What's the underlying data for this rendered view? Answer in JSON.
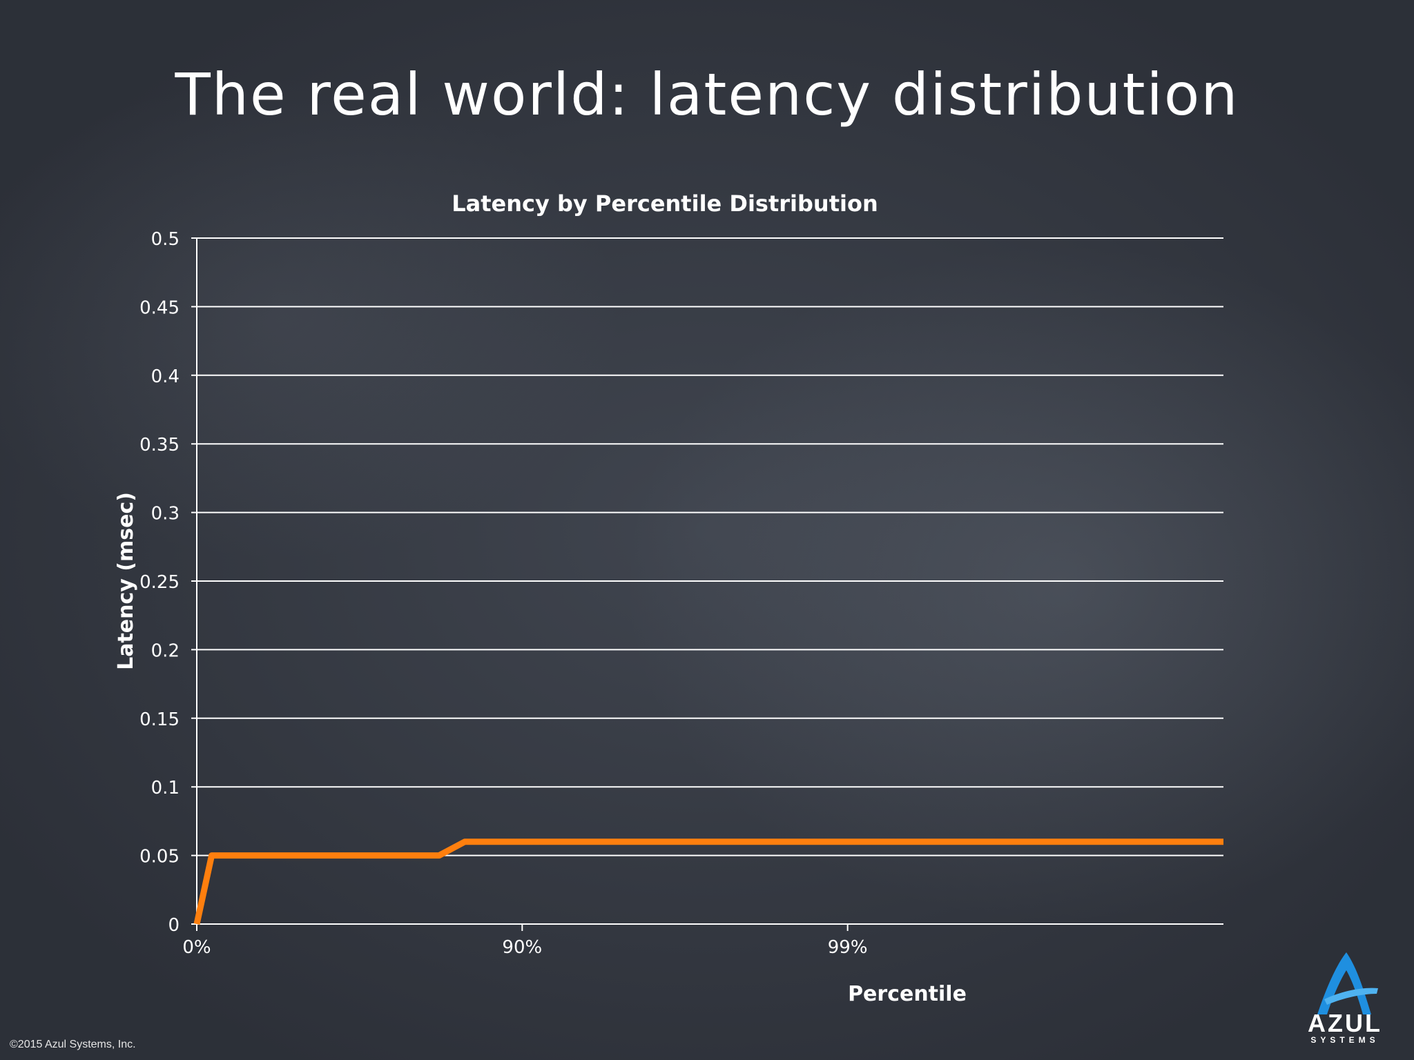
{
  "slide": {
    "title": "The real world: latency distribution",
    "copyright": "©2015 Azul Systems, Inc.",
    "logo_word": "AZUL",
    "logo_sub": "SYSTEMS"
  },
  "colors": {
    "series": "#ff7f0e",
    "grid": "#ffffff",
    "text": "#ffffff",
    "logo": "#1f8fe0"
  },
  "chart_data": {
    "type": "line",
    "title": "Latency by Percentile Distribution",
    "xlabel": "Percentile",
    "ylabel": "Latency (msec)",
    "x_scale": "percentile (log of 1/(1-p))",
    "xlim": [
      0,
      99.93
    ],
    "ylim": [
      0,
      0.5
    ],
    "grid": true,
    "y_ticks": [
      "0",
      "0.05",
      "0.1",
      "0.15",
      "0.2",
      "0.25",
      "0.3",
      "0.35",
      "0.4",
      "0.45",
      "0.5"
    ],
    "x_ticks": [
      {
        "value": 0,
        "label": "0%"
      },
      {
        "value": 90,
        "label": "90%"
      },
      {
        "value": 99,
        "label": "99%"
      }
    ],
    "series": [
      {
        "x": [
          0,
          10,
          82,
          85,
          99.93
        ],
        "y": [
          0,
          0.05,
          0.05,
          0.06,
          0.06
        ]
      }
    ]
  }
}
